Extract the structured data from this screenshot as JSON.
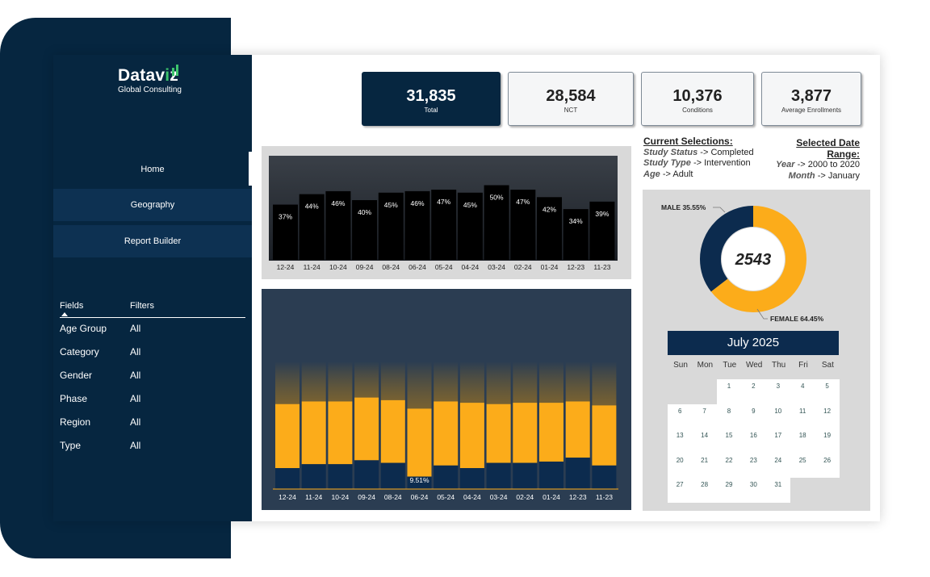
{
  "brand": {
    "name_start": "Datav",
    "name_accent": "i",
    "name_end": "z",
    "subtitle": "Global Consulting"
  },
  "nav": [
    {
      "label": "Home"
    },
    {
      "label": "Geography"
    },
    {
      "label": "Report Builder"
    }
  ],
  "fields_header": {
    "fields": "Fields",
    "filters": "Filters"
  },
  "fields": [
    {
      "name": "Age Group",
      "filter": "All"
    },
    {
      "name": "Category",
      "filter": "All"
    },
    {
      "name": "Gender",
      "filter": "All"
    },
    {
      "name": "Phase",
      "filter": "All"
    },
    {
      "name": "Region",
      "filter": "All"
    },
    {
      "name": "Type",
      "filter": "All"
    }
  ],
  "kpis": [
    {
      "value": "31,835",
      "label": "Total"
    },
    {
      "value": "28,584",
      "label": "NCT"
    },
    {
      "value": "10,376",
      "label": "Conditions"
    },
    {
      "value": "3,877",
      "label": "Average Enrollments"
    }
  ],
  "selections": {
    "title": "Current Selections:",
    "items": [
      {
        "key": "Study Status",
        "value": "-> Completed"
      },
      {
        "key": "Study Type",
        "value": "-> Intervention"
      },
      {
        "key": "Age",
        "value": "-> Adult"
      }
    ]
  },
  "date_range": {
    "title": "Selected Date Range:",
    "items": [
      {
        "key": "Year",
        "value": "-> 2000 to 2020"
      },
      {
        "key": "Month",
        "value": "-> January"
      }
    ]
  },
  "chart_data": [
    {
      "type": "bar",
      "categories": [
        "12-24",
        "11-24",
        "10-24",
        "09-24",
        "08-24",
        "06-24",
        "05-24",
        "04-24",
        "03-24",
        "02-24",
        "01-24",
        "12-23",
        "11-23"
      ],
      "values": [
        37,
        44,
        46,
        40,
        45,
        46,
        47,
        45,
        50,
        47,
        42,
        34,
        39
      ],
      "labels": [
        "37%",
        "44%",
        "46%",
        "40%",
        "45%",
        "46%",
        "47%",
        "45%",
        "50%",
        "47%",
        "42%",
        "34%",
        "39%"
      ],
      "ylim": [
        0,
        100
      ]
    },
    {
      "type": "bar",
      "stacked": true,
      "categories": [
        "12-24",
        "11-24",
        "10-24",
        "09-24",
        "08-24",
        "06-24",
        "05-24",
        "04-24",
        "03-24",
        "02-24",
        "01-24",
        "12-23",
        "11-23"
      ],
      "series": [
        {
          "name": "bottom",
          "values": [
            16,
            19,
            19,
            22,
            20,
            9.51,
            18,
            16,
            20,
            20,
            21,
            24,
            18
          ]
        },
        {
          "name": "top",
          "values": [
            49,
            48,
            48,
            48,
            48,
            52,
            49,
            50,
            45,
            46,
            45,
            43,
            46
          ]
        }
      ],
      "annotation": "9.51%",
      "ylim": [
        0,
        100
      ]
    },
    {
      "type": "pie",
      "donut": true,
      "center_label": "2543",
      "slices": [
        {
          "name": "MALE",
          "value": 35.55,
          "label": "MALE 35.55%"
        },
        {
          "name": "FEMALE",
          "value": 64.45,
          "label": "FEMALE 64.45%"
        }
      ]
    }
  ],
  "calendar": {
    "title": "July 2025",
    "weekdays": [
      "Sun",
      "Mon",
      "Tue",
      "Wed",
      "Thu",
      "Fri",
      "Sat"
    ],
    "first_weekday": 2,
    "days": 31
  },
  "colors": {
    "navy": "#0c2b4e",
    "orange": "#fcac1a",
    "black": "#000000"
  }
}
